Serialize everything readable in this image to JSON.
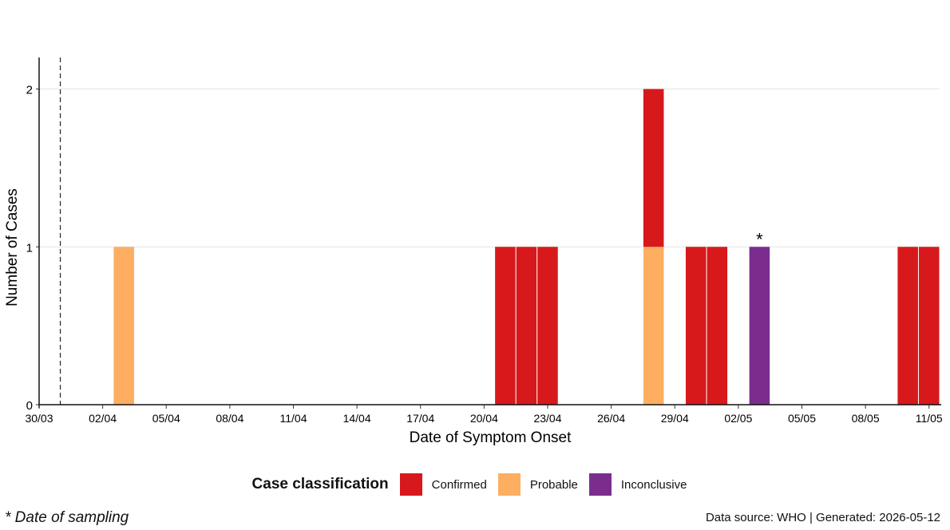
{
  "chart_data": {
    "type": "bar",
    "stacked": true,
    "xlabel": "Date of Symptom Onset",
    "ylabel": "Number of Cases",
    "ylim": [
      0,
      2.2
    ],
    "yticks": [
      0,
      1,
      2
    ],
    "x_range": [
      "2026-03-30",
      "2026-05-11"
    ],
    "xticks": [
      {
        "date": "2026-03-30",
        "label": "30/03"
      },
      {
        "date": "2026-04-02",
        "label": "02/04"
      },
      {
        "date": "2026-04-05",
        "label": "05/04"
      },
      {
        "date": "2026-04-08",
        "label": "08/04"
      },
      {
        "date": "2026-04-11",
        "label": "11/04"
      },
      {
        "date": "2026-04-14",
        "label": "14/04"
      },
      {
        "date": "2026-04-17",
        "label": "17/04"
      },
      {
        "date": "2026-04-20",
        "label": "20/04"
      },
      {
        "date": "2026-04-23",
        "label": "23/04"
      },
      {
        "date": "2026-04-26",
        "label": "26/04"
      },
      {
        "date": "2026-04-29",
        "label": "29/04"
      },
      {
        "date": "2026-05-02",
        "label": "02/05"
      },
      {
        "date": "2026-05-05",
        "label": "05/05"
      },
      {
        "date": "2026-05-08",
        "label": "08/05"
      },
      {
        "date": "2026-05-11",
        "label": "11/05"
      }
    ],
    "reference_line": {
      "date": "2026-03-31",
      "style": "dashed"
    },
    "series": [
      {
        "name": "Confirmed",
        "color": "#d7191c",
        "points": [
          {
            "date": "2026-04-21",
            "value": 1
          },
          {
            "date": "2026-04-22",
            "value": 1
          },
          {
            "date": "2026-04-23",
            "value": 1
          },
          {
            "date": "2026-04-28",
            "value": 1
          },
          {
            "date": "2026-04-30",
            "value": 1
          },
          {
            "date": "2026-05-01",
            "value": 1
          },
          {
            "date": "2026-05-10",
            "value": 1
          },
          {
            "date": "2026-05-11",
            "value": 1
          }
        ]
      },
      {
        "name": "Probable",
        "color": "#fdae61",
        "points": [
          {
            "date": "2026-04-03",
            "value": 1
          },
          {
            "date": "2026-04-28",
            "value": 1
          }
        ]
      },
      {
        "name": "Inconclusive",
        "color": "#7b2d8e",
        "points": [
          {
            "date": "2026-05-03",
            "value": 1
          }
        ]
      }
    ],
    "stack_order": [
      "Probable",
      "Inconclusive",
      "Confirmed"
    ],
    "annotations": [
      {
        "date": "2026-05-03",
        "value": 1,
        "text": "*"
      }
    ],
    "grid": "horizontal major",
    "legend_position": "bottom"
  },
  "legend": {
    "title": "Case classification",
    "items": [
      {
        "label": "Confirmed",
        "color": "#d7191c"
      },
      {
        "label": "Probable",
        "color": "#fdae61"
      },
      {
        "label": "Inconclusive",
        "color": "#7b2d8e"
      }
    ]
  },
  "footnote": "* Date of sampling",
  "source": "Data source: WHO  |  Generated: 2026-05-12"
}
